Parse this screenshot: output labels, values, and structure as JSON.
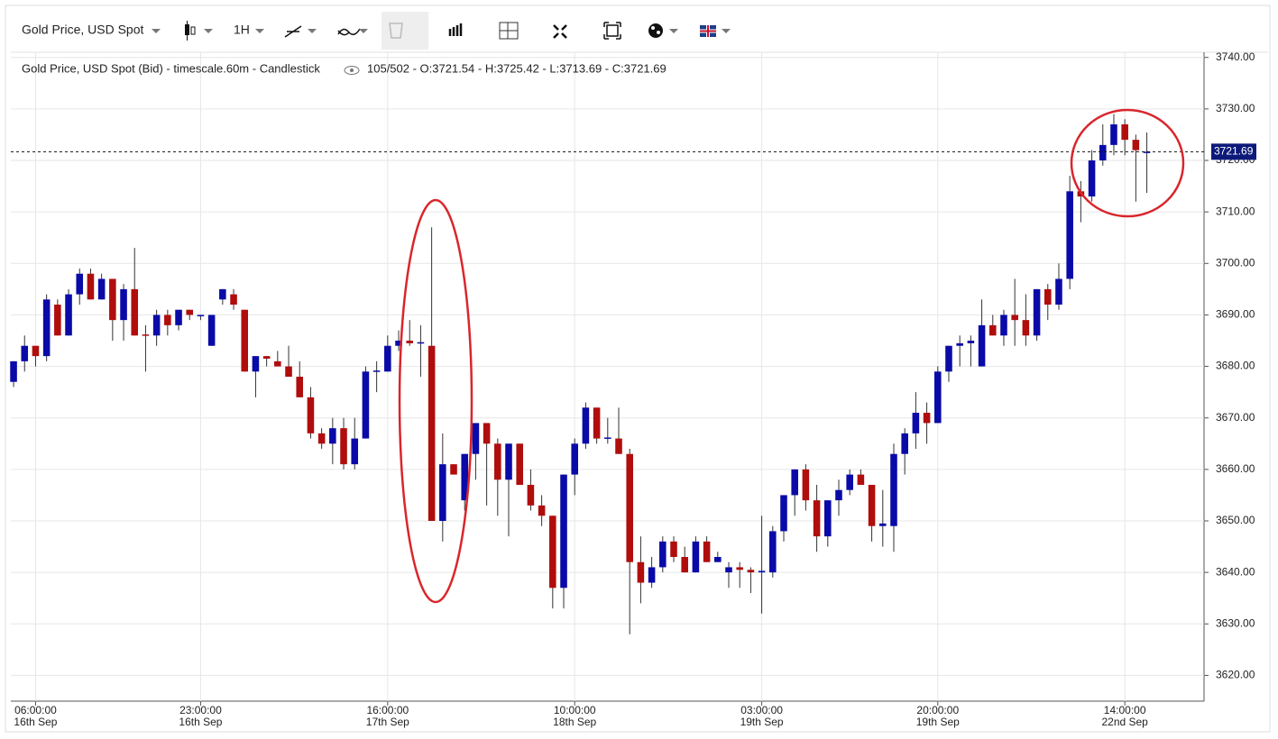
{
  "toolbar": {
    "instrument": "Gold Price, USD Spot",
    "interval": "1H"
  },
  "chart_data": {
    "type": "candlestick",
    "title": "Gold Price, USD Spot (Bid) - timescale.60m - Candlestick",
    "subtitle": "105/502 - O:3721.54 - H:3725.42 - L:3713.69 - C:3721.69",
    "up_color": "#0a0aa8",
    "down_color": "#b00d0d",
    "open": [
      3677,
      3681,
      3684,
      3682,
      3692,
      3686,
      3694,
      3698,
      3693,
      3697,
      3689,
      3695,
      3686.2,
      3686,
      3690,
      3688,
      3691,
      3689.9,
      3684,
      3693,
      3694,
      3691,
      3679,
      3682,
      3681,
      3680,
      3678,
      3674,
      3667,
      3665,
      3668,
      3661,
      3666,
      3679,
      3679,
      3684,
      3685,
      3684.5,
      3684,
      3650,
      3661,
      3654,
      3663,
      3669,
      3665,
      3658,
      3665,
      3657,
      3653,
      3651,
      3637,
      3659,
      3665,
      3672,
      3666,
      3666,
      3663,
      3642,
      3638,
      3641,
      3646,
      3643,
      3640,
      3646,
      3642,
      3640,
      3641,
      3640.5,
      3640,
      3640,
      3648,
      3655,
      3660,
      3654,
      3647,
      3654,
      3656,
      3659,
      3657,
      3649,
      3649,
      3663,
      3667,
      3671,
      3669,
      3679,
      3684,
      3684.5,
      3680,
      3688,
      3686,
      3690,
      3689,
      3686,
      3695,
      3692,
      3697,
      3714,
      3713,
      3720,
      3723,
      3727,
      3724,
      3721.54
    ],
    "high": [
      3681,
      3686,
      3684,
      3694,
      3693,
      3695,
      3699,
      3699,
      3698,
      3697,
      3696,
      3703,
      3688,
      3691,
      3691,
      3691,
      3691,
      3690,
      3690,
      3695,
      3695,
      3691,
      3682,
      3682,
      3683,
      3684,
      3681,
      3676,
      3668,
      3670,
      3670,
      3670,
      3680,
      3681,
      3686,
      3687,
      3689,
      3688,
      3707,
      3667,
      3661,
      3663,
      3669,
      3669,
      3666,
      3665,
      3665,
      3660,
      3655,
      3651,
      3659,
      3666,
      3673,
      3672,
      3670,
      3672,
      3664,
      3647,
      3643,
      3647,
      3647,
      3645,
      3647,
      3647,
      3644,
      3642,
      3642,
      3641,
      3651,
      3649,
      3655,
      3660,
      3661,
      3657,
      3654,
      3658,
      3660,
      3660,
      3657,
      3656,
      3665,
      3668,
      3675,
      3673,
      3680,
      3684,
      3686,
      3686,
      3693,
      3690,
      3691,
      3697,
      3694,
      3695,
      3696,
      3700,
      3717,
      3716,
      3722,
      3727,
      3729,
      3728,
      3725,
      3725.42
    ],
    "low": [
      3676,
      3679,
      3680,
      3681,
      3686,
      3686,
      3692,
      3693,
      3693,
      3685,
      3685,
      3686,
      3679,
      3684,
      3686,
      3687,
      3689,
      3689,
      3684,
      3692,
      3691,
      3679,
      3674,
      3680,
      3680,
      3678,
      3674,
      3666,
      3664,
      3661,
      3660,
      3660,
      3666,
      3675,
      3679,
      3683,
      3684,
      3678,
      3650,
      3646,
      3659,
      3652,
      3658,
      3653,
      3651,
      3647,
      3657,
      3652,
      3649,
      3633,
      3633,
      3655,
      3664,
      3665,
      3665,
      3663,
      3628,
      3634,
      3637,
      3640,
      3642,
      3640,
      3640,
      3642,
      3642,
      3637,
      3637,
      3636,
      3632,
      3639,
      3646,
      3651,
      3652,
      3644,
      3645,
      3651,
      3655,
      3657,
      3646,
      3645,
      3644,
      3659,
      3664,
      3665,
      3669,
      3677,
      3680,
      3680,
      3680,
      3686,
      3684,
      3684,
      3684,
      3685,
      3689,
      3691,
      3695,
      3708,
      3712,
      3719,
      3721,
      3721,
      3712,
      3713.69
    ],
    "close": [
      3681,
      3684,
      3682,
      3693,
      3686,
      3694,
      3698,
      3693,
      3697,
      3689,
      3695,
      3686,
      3686,
      3690,
      3688,
      3691,
      3690,
      3690,
      3690,
      3695,
      3692,
      3679,
      3682,
      3681.5,
      3680,
      3678,
      3674,
      3667,
      3665,
      3668,
      3661,
      3666,
      3679,
      3679.2,
      3684,
      3685,
      3684.5,
      3684.7,
      3650,
      3661,
      3659,
      3663,
      3669,
      3665,
      3658,
      3665,
      3657,
      3653,
      3651,
      3637,
      3659,
      3665,
      3672,
      3666,
      3666.2,
      3663,
      3642,
      3638,
      3641,
      3646,
      3643,
      3640,
      3646,
      3642,
      3643,
      3641,
      3640.5,
      3640,
      3640.3,
      3648,
      3655,
      3660,
      3654,
      3647,
      3654,
      3656,
      3659,
      3657,
      3649,
      3649.5,
      3663,
      3667,
      3671,
      3669,
      3679,
      3684,
      3684.5,
      3685,
      3688,
      3686,
      3690,
      3689,
      3686,
      3695,
      3692,
      3697,
      3714,
      3713,
      3720,
      3723,
      3727,
      3724,
      3722,
      3721.69
    ],
    "last_price": 3721.69,
    "ylim": [
      3615,
      3741
    ],
    "yticks": [
      {
        "value": 3620,
        "label": "3620.00"
      },
      {
        "value": 3630,
        "label": "3630.00"
      },
      {
        "value": 3640,
        "label": "3640.00"
      },
      {
        "value": 3650,
        "label": "3650.00"
      },
      {
        "value": 3660,
        "label": "3660.00"
      },
      {
        "value": 3670,
        "label": "3670.00"
      },
      {
        "value": 3680,
        "label": "3680.00"
      },
      {
        "value": 3690,
        "label": "3690.00"
      },
      {
        "value": 3700,
        "label": "3700.00"
      },
      {
        "value": 3710,
        "label": "3710.00"
      },
      {
        "value": 3720,
        "label": "3720.00"
      },
      {
        "value": 3730,
        "label": "3730.00"
      },
      {
        "value": 3740,
        "label": "3740.00"
      }
    ],
    "xlim": [
      -0.25,
      108.2
    ],
    "xticks": [
      {
        "value": 2,
        "label": [
          "06:00:00",
          "16th Sep"
        ]
      },
      {
        "value": 17,
        "label": [
          "23:00:00",
          "16th Sep"
        ]
      },
      {
        "value": 34,
        "label": [
          "16:00:00",
          "17th Sep"
        ]
      },
      {
        "value": 51,
        "label": [
          "10:00:00",
          "18th Sep"
        ]
      },
      {
        "value": 68,
        "label": [
          "03:00:00",
          "19th Sep"
        ]
      },
      {
        "value": 84,
        "label": [
          "20:00:00",
          "19th Sep"
        ]
      },
      {
        "value": 101,
        "label": [
          "14:00:00",
          "22nd Sep"
        ]
      }
    ],
    "grid": true
  }
}
